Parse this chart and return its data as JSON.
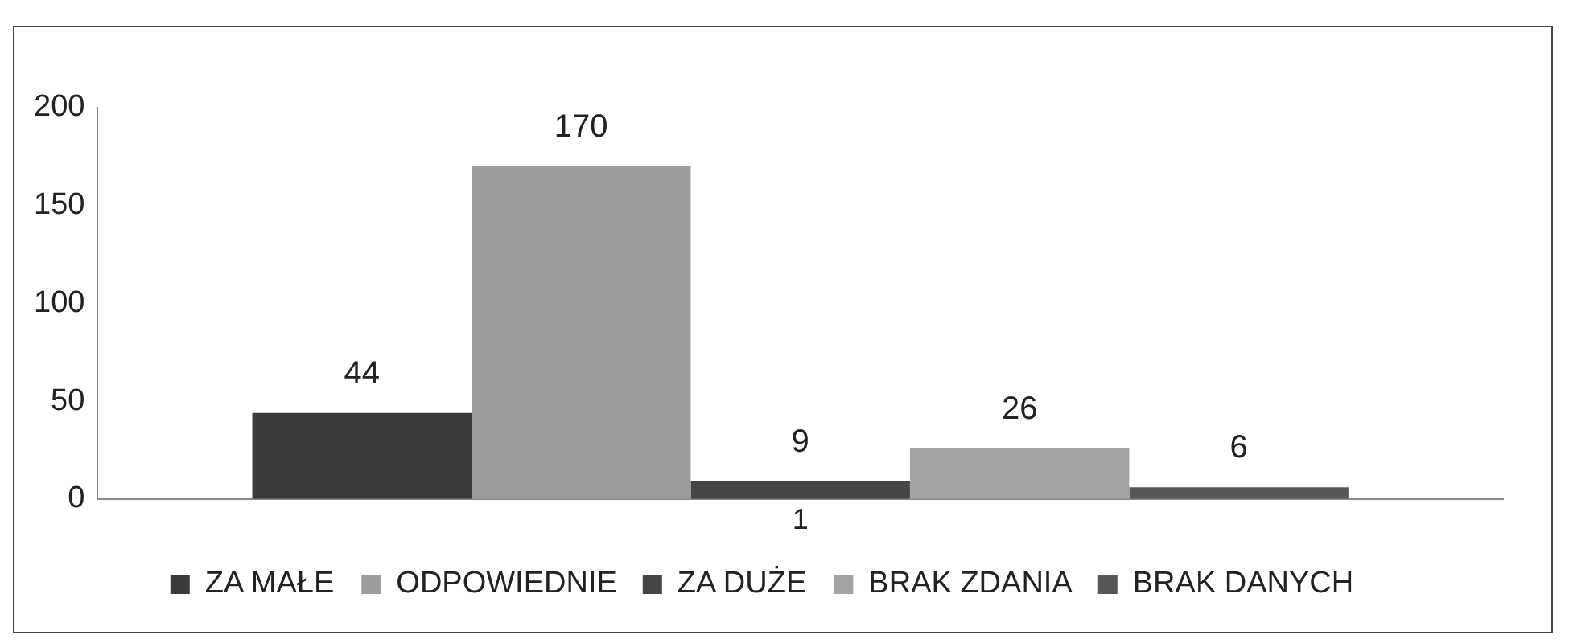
{
  "chart_data": {
    "type": "bar",
    "categories": [
      "1"
    ],
    "series": [
      {
        "name": "ZA MAŁE",
        "color": "#3b3b3b",
        "values": [
          44
        ]
      },
      {
        "name": "ODPOWIEDNIE",
        "color": "#9c9c9c",
        "values": [
          170
        ]
      },
      {
        "name": "ZA DUŻE",
        "color": "#454545",
        "values": [
          9
        ]
      },
      {
        "name": "BRAK ZDANIA",
        "color": "#a3a3a3",
        "values": [
          26
        ]
      },
      {
        "name": "BRAK DANYCH",
        "color": "#575757",
        "values": [
          6
        ]
      }
    ],
    "ylim": [
      0,
      200
    ],
    "yticks": [
      0,
      50,
      100,
      150,
      200
    ],
    "grid": false,
    "legend": "bottom",
    "data_labels": true
  }
}
